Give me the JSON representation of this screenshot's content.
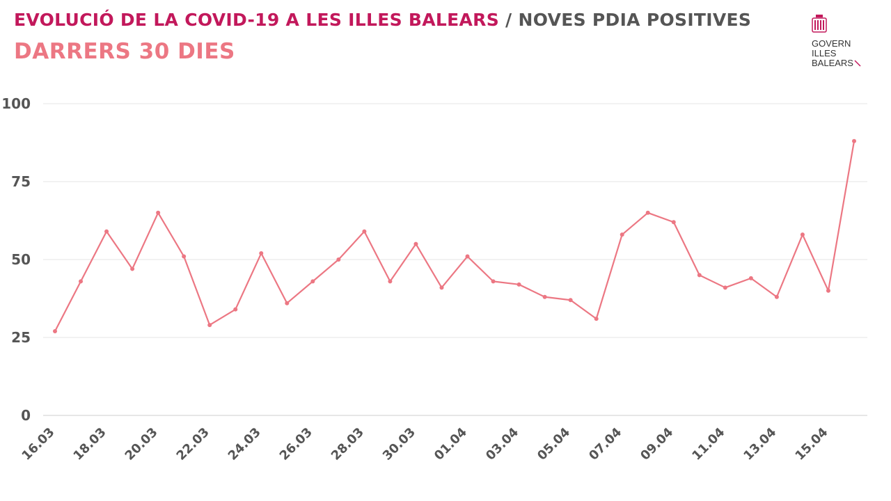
{
  "header": {
    "title_main": "EVOLUCIÓ DE LA COVID-19 A LES ILLES BALEARS",
    "separator": "/",
    "title_sub": "NOVES PDIA POSITIVES",
    "subtitle": "DARRERS 30 DIES"
  },
  "logo": {
    "line1": "GOVERN",
    "line2": "ILLES",
    "line3": "BALEARS"
  },
  "colors": {
    "title": "#c2185b",
    "subtitle": "#ec7783",
    "series": "#ec7783",
    "grid": "#e6e6e6",
    "axis_text": "#555555"
  },
  "chart_data": {
    "type": "line",
    "title": "EVOLUCIÓ DE LA COVID-19 A LES ILLES BALEARS / NOVES PDIA POSITIVES",
    "subtitle": "DARRERS 30 DIES",
    "xlabel": "",
    "ylabel": "",
    "ylim": [
      0,
      100
    ],
    "yticks": [
      0,
      25,
      50,
      75,
      100
    ],
    "grid": true,
    "categories": [
      "16.03",
      "17.03",
      "18.03",
      "19.03",
      "20.03",
      "21.03",
      "22.03",
      "23.03",
      "24.03",
      "25.03",
      "26.03",
      "27.03",
      "28.03",
      "29.03",
      "30.03",
      "31.03",
      "01.04",
      "02.04",
      "03.04",
      "04.04",
      "05.04",
      "06.04",
      "07.04",
      "08.04",
      "09.04",
      "10.04",
      "11.04",
      "12.04",
      "13.04",
      "14.04",
      "15.04",
      "16.04"
    ],
    "tick_labels": [
      "16.03",
      "",
      "18.03",
      "",
      "20.03",
      "",
      "22.03",
      "",
      "24.03",
      "",
      "26.03",
      "",
      "28.03",
      "",
      "30.03",
      "",
      "01.04",
      "",
      "03.04",
      "",
      "05.04",
      "",
      "07.04",
      "",
      "09.04",
      "",
      "11.04",
      "",
      "13.04",
      "",
      "15.04",
      ""
    ],
    "series": [
      {
        "name": "Noves PDIA positives",
        "values": [
          27,
          43,
          59,
          47,
          65,
          51,
          29,
          34,
          52,
          36,
          43,
          50,
          59,
          43,
          55,
          41,
          51,
          43,
          42,
          38,
          37,
          31,
          58,
          65,
          62,
          45,
          41,
          44,
          38,
          58,
          40,
          88
        ]
      }
    ]
  }
}
